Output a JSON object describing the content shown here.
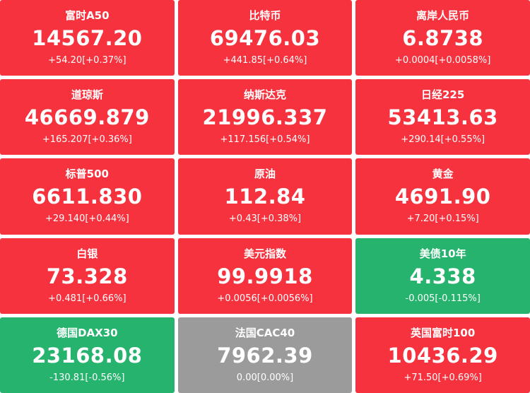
{
  "colors": {
    "up_red": "#f5323e",
    "down_green": "#26b36e",
    "flat_gray": "#9b9b9b",
    "text": "#ffffff",
    "background": "#ffffff"
  },
  "tiles": [
    {
      "name": "富时A50",
      "price": "14567.20",
      "change": "+54.20[+0.37%]",
      "state": "up"
    },
    {
      "name": "比特币",
      "price": "69476.03",
      "change": "+441.85[+0.64%]",
      "state": "up"
    },
    {
      "name": "离岸人民币",
      "price": "6.8738",
      "change": "+0.0004[+0.0058%]",
      "state": "up"
    },
    {
      "name": "道琼斯",
      "price": "46669.879",
      "change": "+165.207[+0.36%]",
      "state": "up"
    },
    {
      "name": "纳斯达克",
      "price": "21996.337",
      "change": "+117.156[+0.54%]",
      "state": "up"
    },
    {
      "name": "日经225",
      "price": "53413.63",
      "change": "+290.14[+0.55%]",
      "state": "up"
    },
    {
      "name": "标普500",
      "price": "6611.830",
      "change": "+29.140[+0.44%]",
      "state": "up"
    },
    {
      "name": "原油",
      "price": "112.84",
      "change": "+0.43[+0.38%]",
      "state": "up"
    },
    {
      "name": "黄金",
      "price": "4691.90",
      "change": "+7.20[+0.15%]",
      "state": "up"
    },
    {
      "name": "白银",
      "price": "73.328",
      "change": "+0.481[+0.66%]",
      "state": "up"
    },
    {
      "name": "美元指数",
      "price": "99.9918",
      "change": "+0.0056[+0.0056%]",
      "state": "up"
    },
    {
      "name": "美债10年",
      "price": "4.338",
      "change": "-0.005[-0.115%]",
      "state": "down"
    },
    {
      "name": "德国DAX30",
      "price": "23168.08",
      "change": "-130.81[-0.56%]",
      "state": "down"
    },
    {
      "name": "法国CAC40",
      "price": "7962.39",
      "change": "0.00[0.00%]",
      "state": "flat"
    },
    {
      "name": "英国富时100",
      "price": "10436.29",
      "change": "+71.50[+0.69%]",
      "state": "up"
    }
  ]
}
